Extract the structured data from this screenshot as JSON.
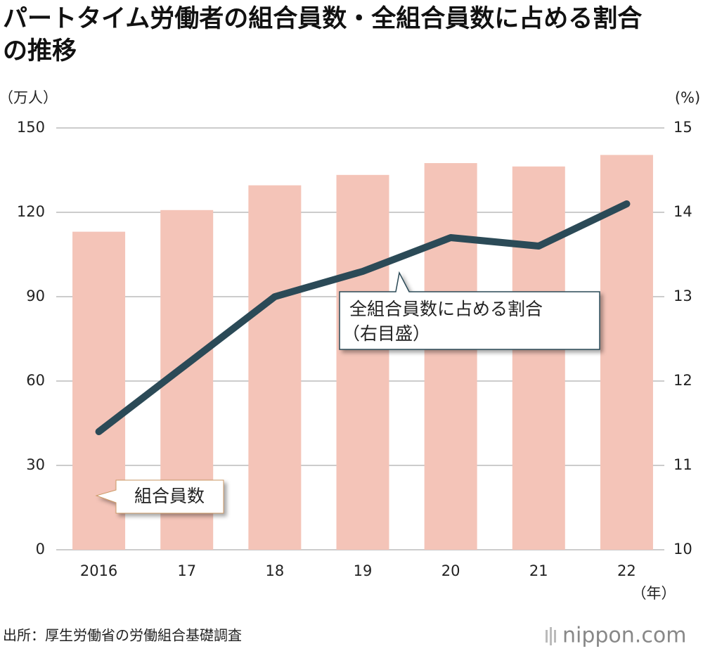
{
  "chart_data": {
    "type": "bar-line",
    "title": "パートタイム労働者の組合員数・全組合員数に占める割合の推移",
    "y_unit": "（万人）",
    "y2_unit": "(%)",
    "x_unit": "（年）",
    "categories": [
      "2016",
      "17",
      "18",
      "19",
      "20",
      "21",
      "22"
    ],
    "series": [
      {
        "name": "組合員数",
        "type": "bar",
        "color": "#f4c4b8",
        "values": [
          113.1,
          120.8,
          129.6,
          133.3,
          137.5,
          136.3,
          140.4
        ]
      },
      {
        "name": "全組合員数に占める割合",
        "type": "line",
        "axis": "y2",
        "color": "#2b4a57",
        "values": [
          11.4,
          12.2,
          13.0,
          13.3,
          13.7,
          13.6,
          14.1
        ]
      }
    ],
    "line_note": "（右目盛）",
    "ylim": [
      0,
      150
    ],
    "yticks": [
      0,
      30,
      60,
      90,
      120,
      150
    ],
    "y2lim": [
      10,
      15
    ],
    "y2ticks": [
      10,
      11,
      12,
      13,
      14,
      15
    ],
    "grid": true,
    "source": "出所：厚生労働省の労働組合基礎調査",
    "logo": "nippon.com"
  }
}
